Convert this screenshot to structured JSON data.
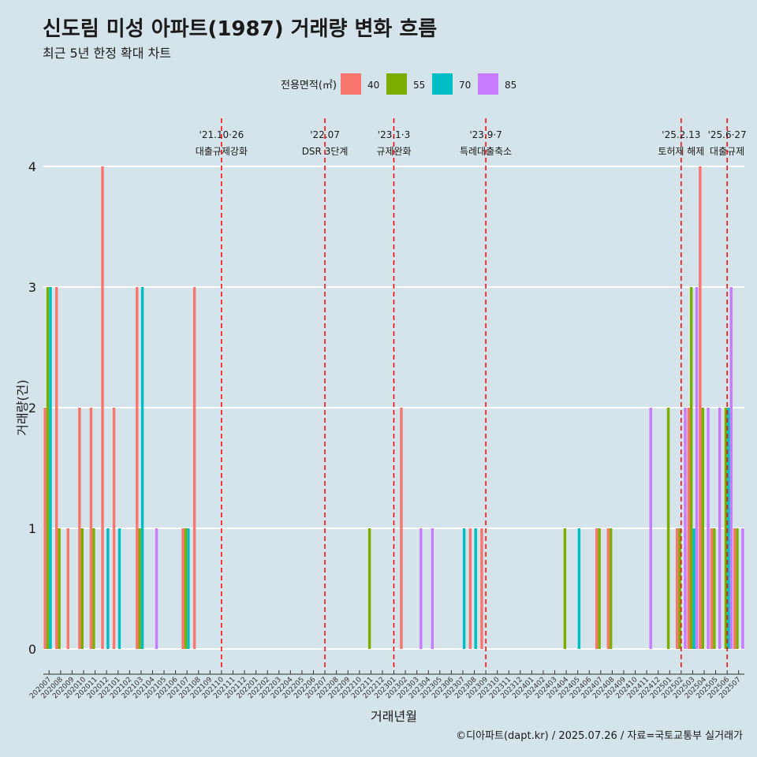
{
  "header": {
    "title": "신도림 미성 아파트(1987) 거래량 변화 흐름",
    "subtitle": "최근 5년 한정 확대 차트"
  },
  "caption": "©디아파트(dapt.kr) / 2025.07.26 / 자료=국토교통부 실거래가",
  "chart_data": {
    "type": "bar",
    "xlabel": "거래년월",
    "ylabel": "거래량(건)",
    "ylim": [
      0,
      4
    ],
    "yticks": [
      0,
      1,
      2,
      3,
      4
    ],
    "grid": true,
    "legend": {
      "title": "전용면적(㎡)",
      "position": "top"
    },
    "categories": [
      "202007",
      "202008",
      "202009",
      "202010",
      "202011",
      "202012",
      "202101",
      "202102",
      "202103",
      "202104",
      "202105",
      "202106",
      "202107",
      "202108",
      "202109",
      "202110",
      "202111",
      "202112",
      "202201",
      "202202",
      "202203",
      "202204",
      "202205",
      "202206",
      "202207",
      "202208",
      "202209",
      "202210",
      "202211",
      "202212",
      "202301",
      "202302",
      "202303",
      "202304",
      "202305",
      "202306",
      "202307",
      "202308",
      "202309",
      "202310",
      "202311",
      "202312",
      "202401",
      "202402",
      "202403",
      "202404",
      "202405",
      "202406",
      "202407",
      "202408",
      "202409",
      "202410",
      "202411",
      "202412",
      "202501",
      "202502",
      "202503",
      "202504",
      "202505",
      "202506",
      "202507"
    ],
    "series": [
      {
        "name": "40",
        "color": "#F8766D",
        "values": [
          2,
          3,
          1,
          2,
          2,
          4,
          2,
          0,
          3,
          0,
          0,
          0,
          1,
          3,
          0,
          0,
          0,
          0,
          0,
          0,
          0,
          0,
          0,
          0,
          0,
          0,
          0,
          0,
          0,
          0,
          0,
          2,
          0,
          0,
          0,
          0,
          0,
          1,
          1,
          0,
          0,
          0,
          0,
          0,
          0,
          0,
          0,
          0,
          1,
          1,
          0,
          0,
          0,
          0,
          0,
          1,
          2,
          4,
          1,
          0,
          1
        ]
      },
      {
        "name": "55",
        "color": "#7CAE00",
        "values": [
          3,
          1,
          0,
          1,
          1,
          0,
          0,
          0,
          1,
          0,
          0,
          0,
          1,
          0,
          0,
          0,
          0,
          0,
          0,
          0,
          0,
          0,
          0,
          0,
          0,
          0,
          0,
          0,
          1,
          0,
          0,
          0,
          0,
          0,
          0,
          0,
          0,
          0,
          0,
          0,
          0,
          0,
          0,
          0,
          0,
          1,
          0,
          0,
          1,
          1,
          0,
          0,
          0,
          0,
          2,
          1,
          3,
          2,
          1,
          2,
          1
        ]
      },
      {
        "name": "70",
        "color": "#00BFC4",
        "values": [
          3,
          0,
          0,
          0,
          0,
          1,
          1,
          0,
          3,
          0,
          0,
          0,
          1,
          0,
          0,
          0,
          0,
          0,
          0,
          0,
          0,
          0,
          0,
          0,
          0,
          0,
          0,
          0,
          0,
          0,
          0,
          0,
          0,
          0,
          0,
          0,
          1,
          1,
          0,
          0,
          0,
          0,
          0,
          0,
          0,
          0,
          1,
          0,
          0,
          0,
          0,
          0,
          0,
          0,
          0,
          0,
          1,
          0,
          0,
          2,
          0
        ]
      },
      {
        "name": "85",
        "color": "#C77CFF",
        "values": [
          0,
          0,
          0,
          0,
          0,
          0,
          0,
          0,
          0,
          1,
          0,
          0,
          0,
          0,
          0,
          0,
          0,
          0,
          0,
          0,
          0,
          0,
          0,
          0,
          0,
          0,
          0,
          0,
          0,
          0,
          0,
          0,
          1,
          1,
          0,
          0,
          0,
          0,
          0,
          0,
          0,
          0,
          0,
          0,
          0,
          0,
          0,
          0,
          0,
          0,
          0,
          0,
          2,
          0,
          0,
          2,
          3,
          2,
          2,
          3,
          1
        ]
      }
    ],
    "annotations": [
      {
        "x": "202110",
        "date": "'21.10·26",
        "label": "대출규제강화"
      },
      {
        "x": "202207",
        "date": "'22.07",
        "label": "DSR 3단계"
      },
      {
        "x": "202301",
        "date": "'23.1·3",
        "label": "규제완화"
      },
      {
        "x": "202309",
        "date": "'23.9·7",
        "label": "특례대출축소"
      },
      {
        "x": "202502",
        "date": "'25.2.13",
        "label": "토허제 해제"
      },
      {
        "x": "202506",
        "date": "'25.6·27",
        "label": "대출규제"
      }
    ]
  }
}
